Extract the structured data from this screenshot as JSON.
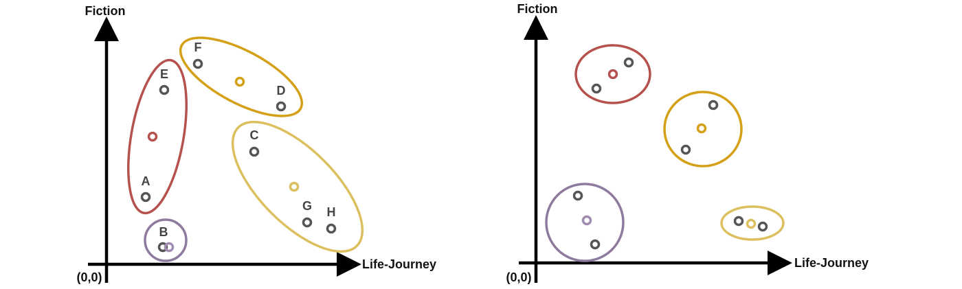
{
  "left": {
    "y_axis_label": "Fiction",
    "x_axis_label": "Life-Journey",
    "origin_label": "(0,0)",
    "point_labels": [
      "A",
      "B",
      "C",
      "D",
      "E",
      "F",
      "G",
      "H"
    ]
  },
  "right": {
    "y_axis_label": "Fiction",
    "x_axis_label": "Life-Journey",
    "origin_label": "(0,0)"
  }
}
